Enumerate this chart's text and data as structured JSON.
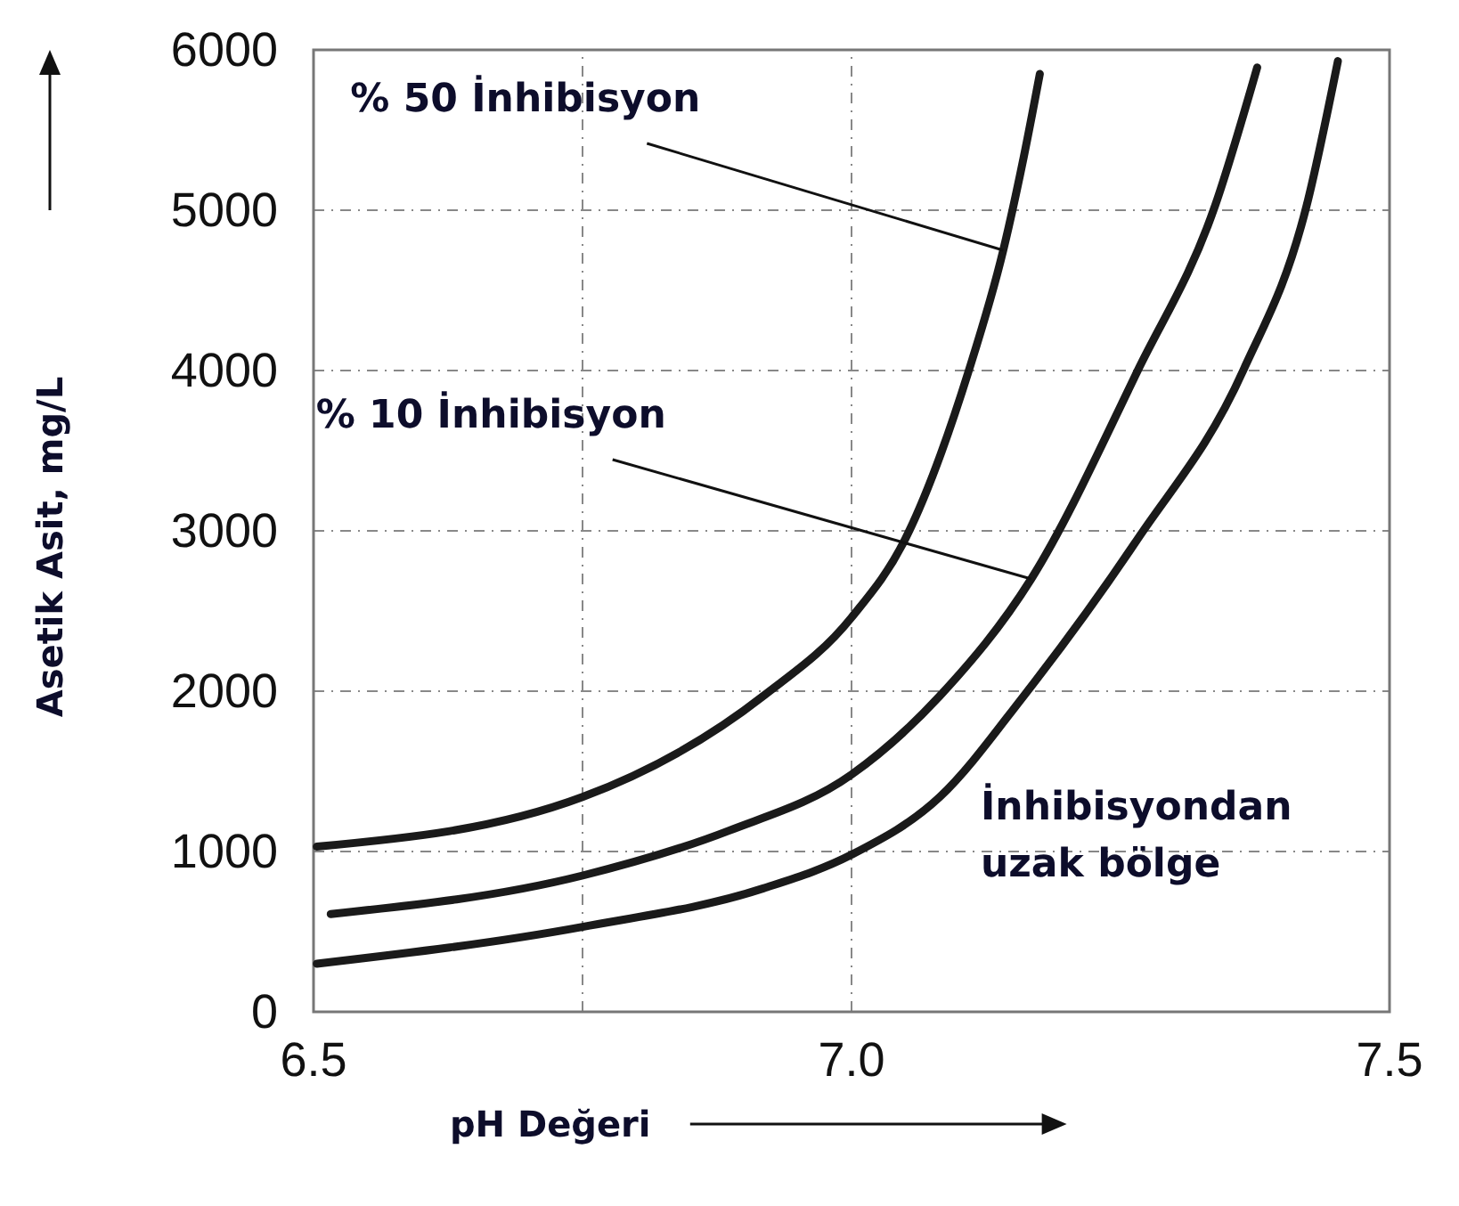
{
  "chart_data": {
    "type": "line",
    "xlabel": "pH Değeri",
    "ylabel": "Asetik Asit, mg/L",
    "xlim": [
      6.5,
      7.5
    ],
    "ylim": [
      0,
      6000
    ],
    "xticks": [
      6.5,
      {
        "value": 6.75,
        "label": null
      },
      {
        "value": 7,
        "label": "7.0"
      },
      7.5
    ],
    "yticks": [
      0,
      1000,
      2000,
      3000,
      4000,
      5000,
      6000
    ],
    "grid": true,
    "marker": "none",
    "line_style": "solid",
    "series": [
      {
        "color": "#1a1a1a",
        "x": [
          6.503,
          6.75,
          6.918,
          7.0,
          7.05,
          7.109,
          7.141,
          7.16,
          7.175
        ],
        "values": [
          1030,
          1340,
          1970,
          2460,
          2950,
          4000,
          4750,
          5330,
          5850
        ]
      },
      {
        "color": "#1a1a1a",
        "x": [
          6.516,
          6.75,
          6.886,
          7.0,
          7.082,
          7.167,
          7.266,
          7.338,
          7.377
        ],
        "values": [
          610,
          850,
          1130,
          1480,
          1970,
          2700,
          4000,
          5030,
          5890
        ]
      },
      {
        "color": "#1a1a1a",
        "x": [
          6.503,
          6.75,
          6.918,
          7.0,
          7.082,
          7.16,
          7.266,
          7.364,
          7.423,
          7.452
        ],
        "values": [
          300,
          530,
          770,
          980,
          1340,
          1970,
          2950,
          4000,
          5030,
          5930
        ]
      }
    ],
    "annotations": [
      {
        "text": "% 50 İnhibisyon",
        "x": 7.141,
        "y": 4750
      },
      {
        "text": "% 10 İnhibisyon",
        "x": 7.167,
        "y": 2700
      },
      "İnhibisyondan\nuzak bölge"
    ]
  }
}
